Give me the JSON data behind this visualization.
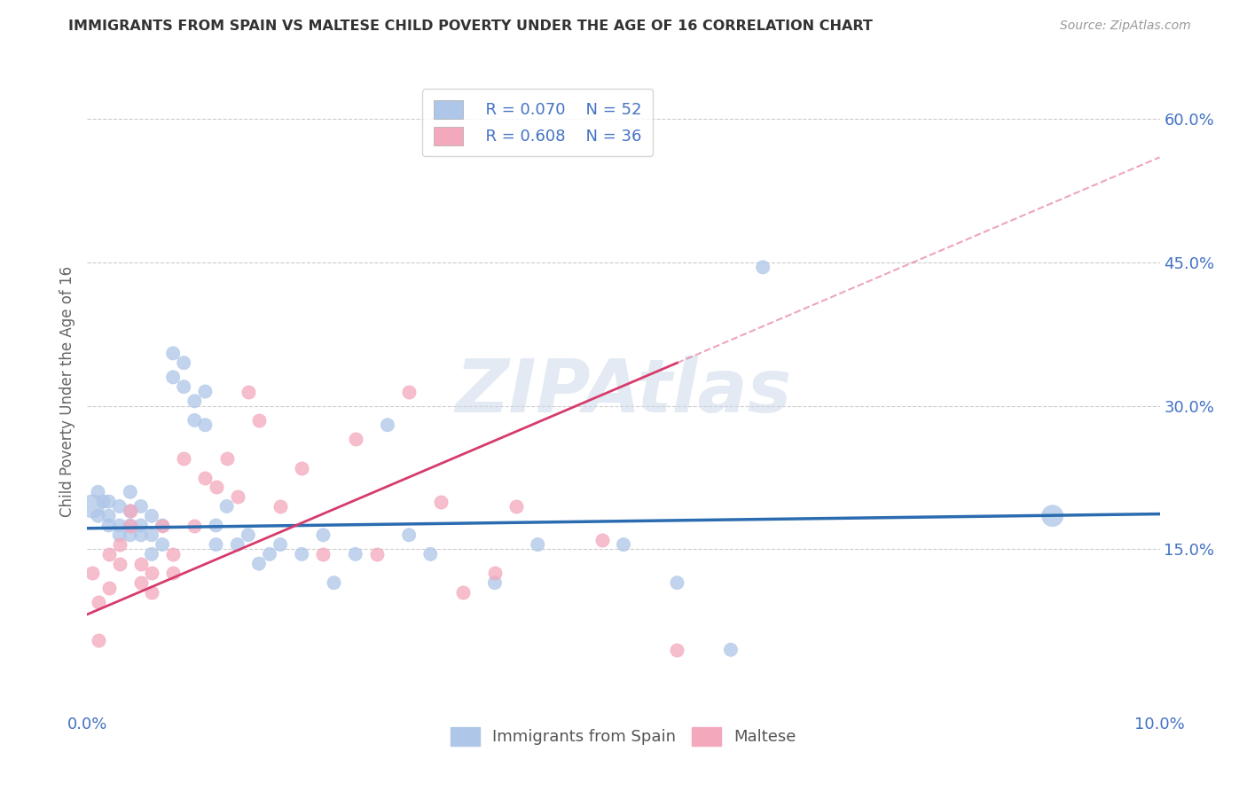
{
  "title": "IMMIGRANTS FROM SPAIN VS MALTESE CHILD POVERTY UNDER THE AGE OF 16 CORRELATION CHART",
  "source": "Source: ZipAtlas.com",
  "ylabel": "Child Poverty Under the Age of 16",
  "xlim": [
    0.0,
    0.1
  ],
  "ylim": [
    -0.02,
    0.65
  ],
  "xticks": [
    0.0,
    0.02,
    0.04,
    0.06,
    0.08,
    0.1
  ],
  "xticklabels": [
    "0.0%",
    "",
    "",
    "",
    "",
    "10.0%"
  ],
  "yticks_right": [
    0.15,
    0.3,
    0.45,
    0.6
  ],
  "ytick_labels_right": [
    "15.0%",
    "30.0%",
    "45.0%",
    "60.0%"
  ],
  "blue_color": "#aec6e8",
  "pink_color": "#f4a8bc",
  "blue_line_color": "#2b6cb0",
  "pink_line_color": "#d63b6b",
  "legend_r_blue": "R = 0.070",
  "legend_n_blue": "N = 52",
  "legend_r_pink": "R = 0.608",
  "legend_n_pink": "N = 36",
  "legend_label_blue": "Immigrants from Spain",
  "legend_label_pink": "Maltese",
  "watermark": "ZIPAtlas",
  "blue_scatter_x": [
    0.0005,
    0.001,
    0.001,
    0.0015,
    0.002,
    0.002,
    0.002,
    0.003,
    0.003,
    0.003,
    0.004,
    0.004,
    0.004,
    0.004,
    0.005,
    0.005,
    0.005,
    0.006,
    0.006,
    0.006,
    0.007,
    0.007,
    0.008,
    0.008,
    0.009,
    0.009,
    0.01,
    0.01,
    0.011,
    0.011,
    0.012,
    0.012,
    0.013,
    0.014,
    0.015,
    0.016,
    0.017,
    0.018,
    0.02,
    0.022,
    0.023,
    0.025,
    0.028,
    0.03,
    0.032,
    0.038,
    0.042,
    0.05,
    0.055,
    0.06,
    0.063,
    0.09
  ],
  "blue_scatter_y": [
    0.195,
    0.21,
    0.185,
    0.2,
    0.185,
    0.175,
    0.2,
    0.175,
    0.165,
    0.195,
    0.165,
    0.175,
    0.19,
    0.21,
    0.165,
    0.175,
    0.195,
    0.145,
    0.165,
    0.185,
    0.155,
    0.175,
    0.33,
    0.355,
    0.32,
    0.345,
    0.285,
    0.305,
    0.28,
    0.315,
    0.155,
    0.175,
    0.195,
    0.155,
    0.165,
    0.135,
    0.145,
    0.155,
    0.145,
    0.165,
    0.115,
    0.145,
    0.28,
    0.165,
    0.145,
    0.115,
    0.155,
    0.155,
    0.115,
    0.045,
    0.445,
    0.185
  ],
  "pink_scatter_x": [
    0.0005,
    0.001,
    0.001,
    0.002,
    0.002,
    0.003,
    0.003,
    0.004,
    0.004,
    0.005,
    0.005,
    0.006,
    0.006,
    0.007,
    0.008,
    0.008,
    0.009,
    0.01,
    0.011,
    0.012,
    0.013,
    0.014,
    0.015,
    0.016,
    0.018,
    0.02,
    0.022,
    0.025,
    0.027,
    0.03,
    0.033,
    0.035,
    0.038,
    0.04,
    0.048,
    0.055
  ],
  "pink_scatter_y": [
    0.125,
    0.095,
    0.055,
    0.145,
    0.11,
    0.155,
    0.135,
    0.175,
    0.19,
    0.115,
    0.135,
    0.105,
    0.125,
    0.175,
    0.125,
    0.145,
    0.245,
    0.175,
    0.225,
    0.215,
    0.245,
    0.205,
    0.315,
    0.285,
    0.195,
    0.235,
    0.145,
    0.265,
    0.145,
    0.315,
    0.2,
    0.105,
    0.125,
    0.195,
    0.16,
    0.045
  ],
  "blue_line_x": [
    0.0,
    0.1
  ],
  "blue_line_y": [
    0.172,
    0.187
  ],
  "pink_line_x": [
    0.0,
    0.055
  ],
  "pink_line_y": [
    0.082,
    0.345
  ],
  "pink_dashed_line_x": [
    0.055,
    0.1
  ],
  "pink_dashed_line_y": [
    0.345,
    0.56
  ],
  "grid_color": "#cccccc",
  "title_color": "#333333",
  "tick_color": "#4472c4",
  "dot_size": 120
}
